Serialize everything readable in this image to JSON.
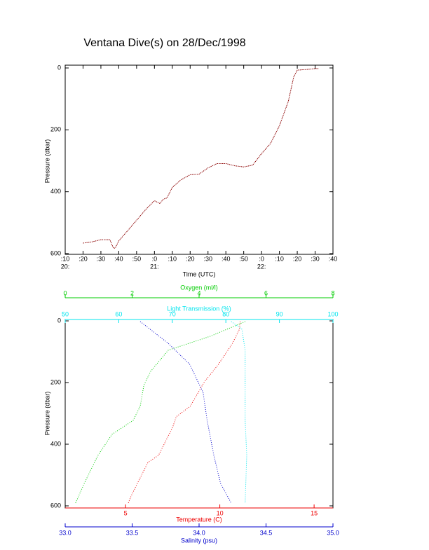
{
  "chart_data": [
    {
      "type": "line",
      "title": "Ventana Dive(s) on 28/Dec/1998",
      "xlabel": "Time (UTC)",
      "ylabel": "Pressure (dbar)",
      "xlim": [
        "20:10",
        "22:40"
      ],
      "ylim": [
        0,
        600
      ],
      "y_inverted": true,
      "xticks": [
        {
          "value": "20:10",
          "label": ":10"
        },
        {
          "value": "20:20",
          "label": ":20"
        },
        {
          "value": "20:30",
          "label": ":30"
        },
        {
          "value": "20:40",
          "label": ":40"
        },
        {
          "value": "20:50",
          "label": ":50"
        },
        {
          "value": "21:00",
          "label": ":0"
        },
        {
          "value": "21:10",
          "label": ":10"
        },
        {
          "value": "21:20",
          "label": ":20"
        },
        {
          "value": "21:30",
          "label": ":30"
        },
        {
          "value": "21:40",
          "label": ":40"
        },
        {
          "value": "21:50",
          "label": ":50"
        },
        {
          "value": "22:00",
          "label": ":0"
        },
        {
          "value": "22:10",
          "label": ":10"
        },
        {
          "value": "22:20",
          "label": ":20"
        },
        {
          "value": "22:30",
          "label": ":30"
        },
        {
          "value": "22:40",
          "label": ":40"
        }
      ],
      "xhours": [
        {
          "value": "20:10",
          "label": "20:"
        },
        {
          "value": "21:00",
          "label": "21:"
        },
        {
          "value": "22:00",
          "label": "22:"
        }
      ],
      "yticks": [
        0,
        200,
        400,
        600
      ],
      "series": [
        {
          "color": "#8b0000",
          "x": [
            "20:20",
            "20:25",
            "20:30",
            "20:35",
            "20:37",
            "20:38",
            "20:40",
            "20:45",
            "20:50",
            "20:55",
            "21:00",
            "21:03",
            "21:05",
            "21:07",
            "21:10",
            "21:15",
            "21:20",
            "21:25",
            "21:30",
            "21:35",
            "21:40",
            "21:45",
            "21:50",
            "21:55",
            "22:00",
            "22:05",
            "22:10",
            "22:15",
            "22:18",
            "22:20",
            "22:25",
            "22:30",
            "22:32"
          ],
          "values": [
            566,
            562,
            555,
            555,
            582,
            582,
            559,
            526,
            492,
            458,
            429,
            438,
            424,
            420,
            386,
            361,
            345,
            343,
            323,
            309,
            309,
            316,
            320,
            314,
            277,
            244,
            187,
            108,
            29,
            7,
            5,
            2,
            2
          ]
        }
      ]
    },
    {
      "type": "profile",
      "ylabel": "Pressure (dbar)",
      "ylim": [
        0,
        600
      ],
      "y_inverted": true,
      "yticks": [
        0,
        200,
        400,
        600
      ],
      "x_axes": [
        {
          "label": "Oxygen (ml/l)",
          "color": "#00cc00",
          "lim": [
            0,
            8
          ],
          "ticks": [
            0,
            2,
            4,
            6,
            8
          ]
        },
        {
          "label": "Light Transmission (%)",
          "color": "#00e5ee",
          "lim": [
            50,
            100
          ],
          "ticks": [
            50,
            60,
            70,
            80,
            90,
            100
          ]
        },
        {
          "label": "Temperature (C)",
          "color": "#ee0000",
          "lim": [
            1.8,
            16
          ],
          "ticks": [
            5,
            10,
            15
          ]
        },
        {
          "label": "Salinity (psu)",
          "color": "#0000cc",
          "lim": [
            33,
            35
          ],
          "ticks": [
            {
              "value": 33,
              "label": "33.0"
            },
            33.5,
            {
              "value": 34,
              "label": "34.0"
            },
            34.5,
            {
              "value": 35,
              "label": "35.0"
            }
          ]
        }
      ],
      "series": [
        {
          "axis": 2,
          "color": "#ee0000",
          "x": [
            11.08,
            11.04,
            10.67,
            9.93,
            9.18,
            8.43,
            7.69,
            7.5,
            6.75,
            6.19,
            5.63,
            5.26,
            5.15
          ],
          "values": [
            2,
            27,
            73,
            141,
            198,
            277,
            311,
            345,
            436,
            459,
            527,
            573,
            591
          ]
        },
        {
          "axis": 3,
          "color": "#0000cc",
          "x": [
            33.56,
            33.77,
            33.93,
            34.03,
            34.06,
            34.11,
            34.16,
            34.24
          ],
          "values": [
            2,
            73,
            141,
            232,
            323,
            436,
            527,
            591
          ]
        },
        {
          "axis": 0,
          "color": "#00cc00",
          "x": [
            5.38,
            4.33,
            3.08,
            2.55,
            2.35,
            2.24,
            2.03,
            1.4,
            0.98,
            0.57,
            0.31
          ],
          "values": [
            2,
            50,
            95,
            164,
            209,
            277,
            323,
            368,
            436,
            527,
            591
          ]
        },
        {
          "axis": 1,
          "color": "#00e5ee",
          "x": [
            81.0,
            83.0,
            83.6,
            83.6,
            83.9,
            83.6
          ],
          "values": [
            2,
            27,
            95,
            323,
            436,
            591
          ]
        }
      ]
    }
  ]
}
